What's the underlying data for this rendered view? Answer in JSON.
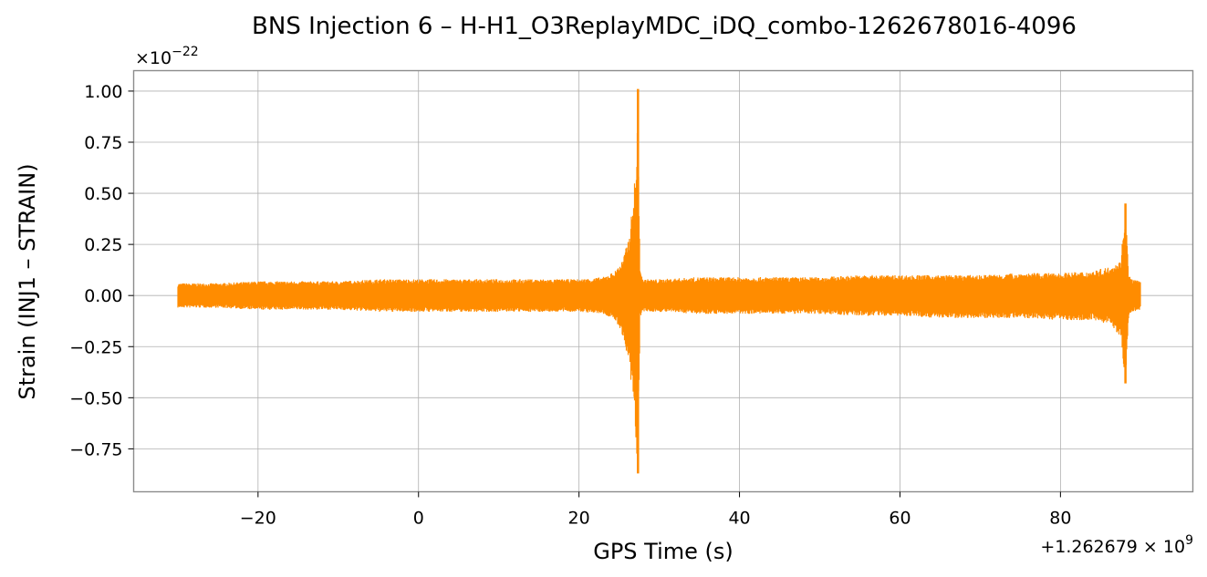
{
  "chart_data": {
    "type": "line",
    "title": "BNS Injection 6 – H-H1_O3ReplayMDC_iDQ_combo-1262678016-4096",
    "xlabel": "GPS Time (s)",
    "ylabel": "Strain (INJ1 – STRAIN)",
    "x_offset_label": "+1.262679 × 10",
    "x_offset_exponent": "9",
    "y_scale_label": "×10",
    "y_scale_exponent": "−22",
    "xlim": [
      -35.5,
      96.5
    ],
    "ylim": [
      -0.96,
      1.1
    ],
    "x_ticks": [
      -20,
      0,
      20,
      40,
      60,
      80
    ],
    "x_tick_labels": [
      "−20",
      "0",
      "20",
      "40",
      "60",
      "80"
    ],
    "y_ticks": [
      1.0,
      0.75,
      0.5,
      0.25,
      0.0,
      -0.25,
      -0.5,
      -0.75
    ],
    "y_tick_labels": [
      "1.00",
      "0.75",
      "0.50",
      "0.25",
      "0.00",
      "−0.25",
      "−0.50",
      "−0.75"
    ],
    "grid": true,
    "series_color": "#ff8c00",
    "series": [
      {
        "x": [
          -30,
          -25,
          -20,
          -15,
          -10,
          -5,
          0,
          5,
          10,
          15,
          20,
          23,
          24.5,
          25.5,
          26.3,
          26.8,
          27.2,
          27.35,
          27.6,
          28,
          30,
          35,
          40,
          45,
          50,
          55,
          60,
          65,
          70,
          75,
          80,
          84,
          86,
          87.5,
          88.1,
          88.5,
          89,
          90
        ],
        "envelope_max": [
          0.06,
          0.06,
          0.07,
          0.07,
          0.07,
          0.08,
          0.08,
          0.08,
          0.08,
          0.08,
          0.08,
          0.09,
          0.12,
          0.18,
          0.3,
          0.5,
          0.7,
          1.01,
          0.12,
          0.08,
          0.08,
          0.09,
          0.09,
          0.09,
          0.09,
          0.1,
          0.1,
          0.1,
          0.1,
          0.11,
          0.11,
          0.12,
          0.14,
          0.17,
          0.45,
          0.1,
          0.08,
          0.07
        ],
        "envelope_min": [
          -0.06,
          -0.06,
          -0.07,
          -0.07,
          -0.07,
          -0.08,
          -0.08,
          -0.08,
          -0.08,
          -0.08,
          -0.08,
          -0.09,
          -0.12,
          -0.2,
          -0.38,
          -0.55,
          -0.78,
          -0.87,
          -0.12,
          -0.08,
          -0.08,
          -0.09,
          -0.09,
          -0.09,
          -0.09,
          -0.1,
          -0.1,
          -0.11,
          -0.11,
          -0.11,
          -0.12,
          -0.12,
          -0.14,
          -0.2,
          -0.43,
          -0.1,
          -0.08,
          -0.07
        ]
      }
    ]
  }
}
